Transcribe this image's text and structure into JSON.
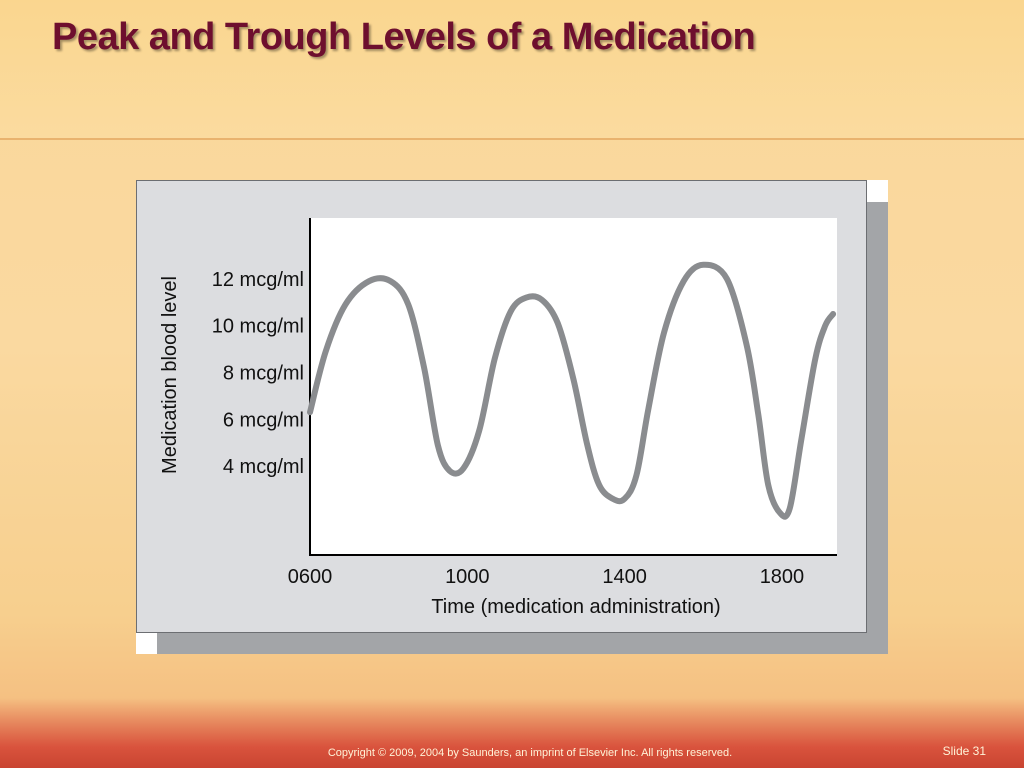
{
  "slide": {
    "title": "Peak and Trough Levels of a Medication",
    "copyright": "Copyright © 2009, 2004 by Saunders, an imprint of Elsevier Inc. All rights reserved.",
    "slide_number": "Slide 31"
  },
  "colors": {
    "title": "#6e0f2e",
    "curve": "#8a8c8f",
    "panel": "#dcdde0",
    "plot_bg": "#ffffff"
  },
  "chart_data": {
    "type": "line",
    "title": "",
    "xlabel": "Time (medication administration)",
    "ylabel": "Medication blood level",
    "x_tick_labels": [
      "0600",
      "1000",
      "1400",
      "1800"
    ],
    "y_tick_labels": [
      "4 mcg/ml",
      "6 mcg/ml",
      "8 mcg/ml",
      "10 mcg/ml",
      "12 mcg/ml"
    ],
    "y_ticks": [
      4,
      6,
      8,
      10,
      12
    ],
    "x_ticks": [
      6,
      10,
      14,
      18
    ],
    "xlim": [
      6,
      19.4
    ],
    "ylim": [
      0.2,
      14.6
    ],
    "grid": false,
    "series": [
      {
        "name": "",
        "x": [
          6.0,
          6.4,
          6.9,
          7.5,
          8.05,
          8.5,
          8.9,
          9.25,
          9.55,
          9.9,
          10.3,
          10.7,
          11.1,
          11.5,
          11.9,
          12.3,
          12.7,
          13.05,
          13.35,
          13.7,
          14.0,
          14.3,
          14.6,
          15.0,
          15.5,
          16.0,
          16.6,
          17.1,
          17.4,
          17.65,
          17.95,
          18.2,
          18.5,
          18.85,
          19.1,
          19.3
        ],
        "y": [
          6.3,
          8.9,
          10.9,
          11.9,
          11.9,
          10.9,
          8.2,
          4.9,
          3.8,
          3.9,
          5.5,
          8.6,
          10.6,
          11.2,
          11.1,
          10.1,
          7.7,
          4.9,
          3.2,
          2.6,
          2.6,
          3.6,
          6.4,
          9.7,
          11.9,
          12.6,
          12.0,
          9.2,
          6.2,
          3.2,
          2.0,
          2.2,
          5.2,
          8.6,
          10.0,
          10.5
        ]
      }
    ]
  }
}
